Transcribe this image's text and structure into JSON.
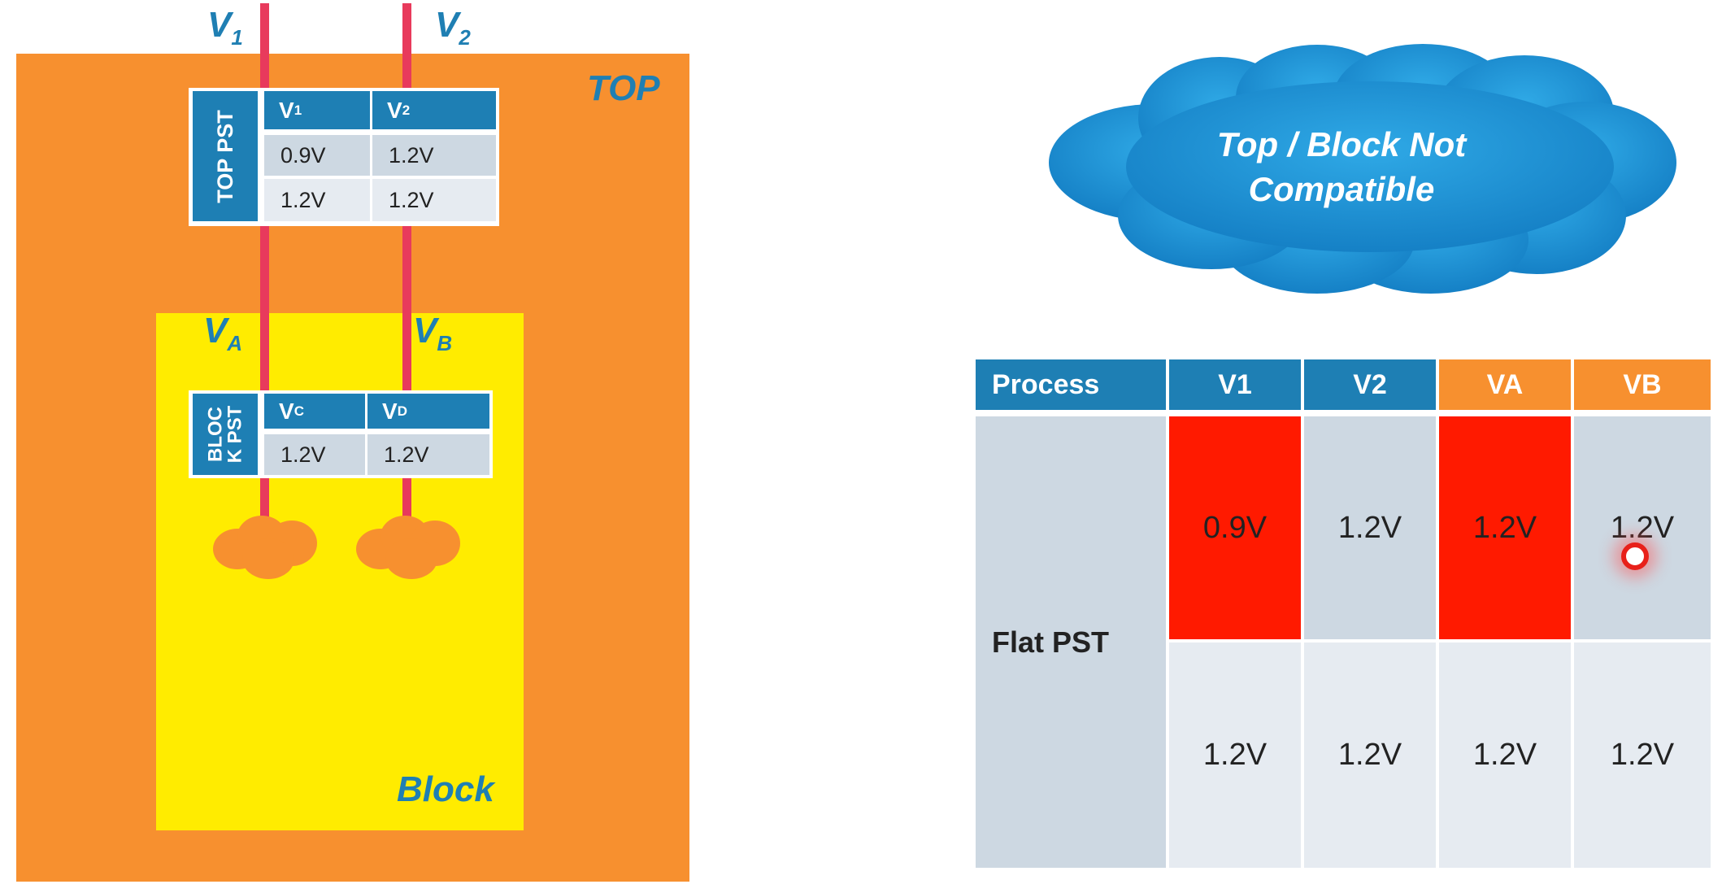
{
  "diagram": {
    "top_label": "TOP",
    "block_label": "Block",
    "signals": {
      "v1": {
        "base": "V",
        "sub": "1"
      },
      "v2": {
        "base": "V",
        "sub": "2"
      },
      "va": {
        "base": "V",
        "sub": "A"
      },
      "vb": {
        "base": "V",
        "sub": "B"
      }
    },
    "top_pst": {
      "title": "TOP PST",
      "headers": [
        {
          "base": "V",
          "sub": "1"
        },
        {
          "base": "V",
          "sub": "2"
        }
      ],
      "rows": [
        [
          "0.9V",
          "1.2V"
        ],
        [
          "1.2V",
          "1.2V"
        ]
      ]
    },
    "block_pst": {
      "title_line1": "BLOC",
      "title_line2": "K PST",
      "headers": [
        {
          "base": "V",
          "sub": "C"
        },
        {
          "base": "V",
          "sub": "D"
        }
      ],
      "rows": [
        [
          "1.2V",
          "1.2V"
        ]
      ]
    }
  },
  "cloud": {
    "line1": "Top / Block Not",
    "line2": "Compatible"
  },
  "flat_table": {
    "headers": [
      "Process",
      "V1",
      "V2",
      "VA",
      "VB"
    ],
    "header_colors": [
      "#1e7fb4",
      "#1e7fb4",
      "#1e7fb4",
      "#f7902f",
      "#f7902f"
    ],
    "row_label": "Flat PST",
    "rows": [
      [
        "0.9V",
        "1.2V",
        "1.2V",
        "1.2V"
      ],
      [
        "1.2V",
        "1.2V",
        "1.2V",
        "1.2V"
      ]
    ],
    "highlight_color": "#ff1a00"
  }
}
